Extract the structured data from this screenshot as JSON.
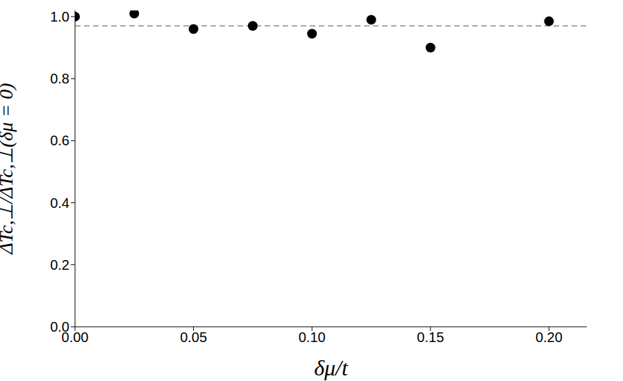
{
  "chart_data": {
    "type": "scatter",
    "x_label": "δμ/t",
    "y_label": "ΔTc,⊥/ΔTc,⊥(δμ = 0)",
    "x": [
      0,
      0.025,
      0.05,
      0.075,
      0.1,
      0.125,
      0.15,
      0.2
    ],
    "values": [
      1.0,
      1.01,
      0.96,
      0.97,
      0.945,
      0.99,
      0.9,
      0.985
    ],
    "color": "#000000",
    "marker": "circle",
    "hline": 0.97,
    "xlim": [
      0,
      0.216
    ],
    "ylim": [
      0,
      1.02
    ],
    "xticks": [
      {
        "value": 0,
        "label": "0.00"
      },
      {
        "value": 0.05,
        "label": "0.05"
      },
      {
        "value": 0.1,
        "label": "0.10"
      },
      {
        "value": 0.15,
        "label": "0.15"
      },
      {
        "value": 0.2,
        "label": "0.20"
      }
    ],
    "yticks": [
      {
        "value": 0,
        "label": "0.0"
      },
      {
        "value": 0.2,
        "label": "0.2"
      },
      {
        "value": 0.4,
        "label": "0.4"
      },
      {
        "value": 0.6,
        "label": "0.6"
      },
      {
        "value": 0.8,
        "label": "0.8"
      },
      {
        "value": 1,
        "label": "1.0"
      }
    ],
    "grid": false
  }
}
